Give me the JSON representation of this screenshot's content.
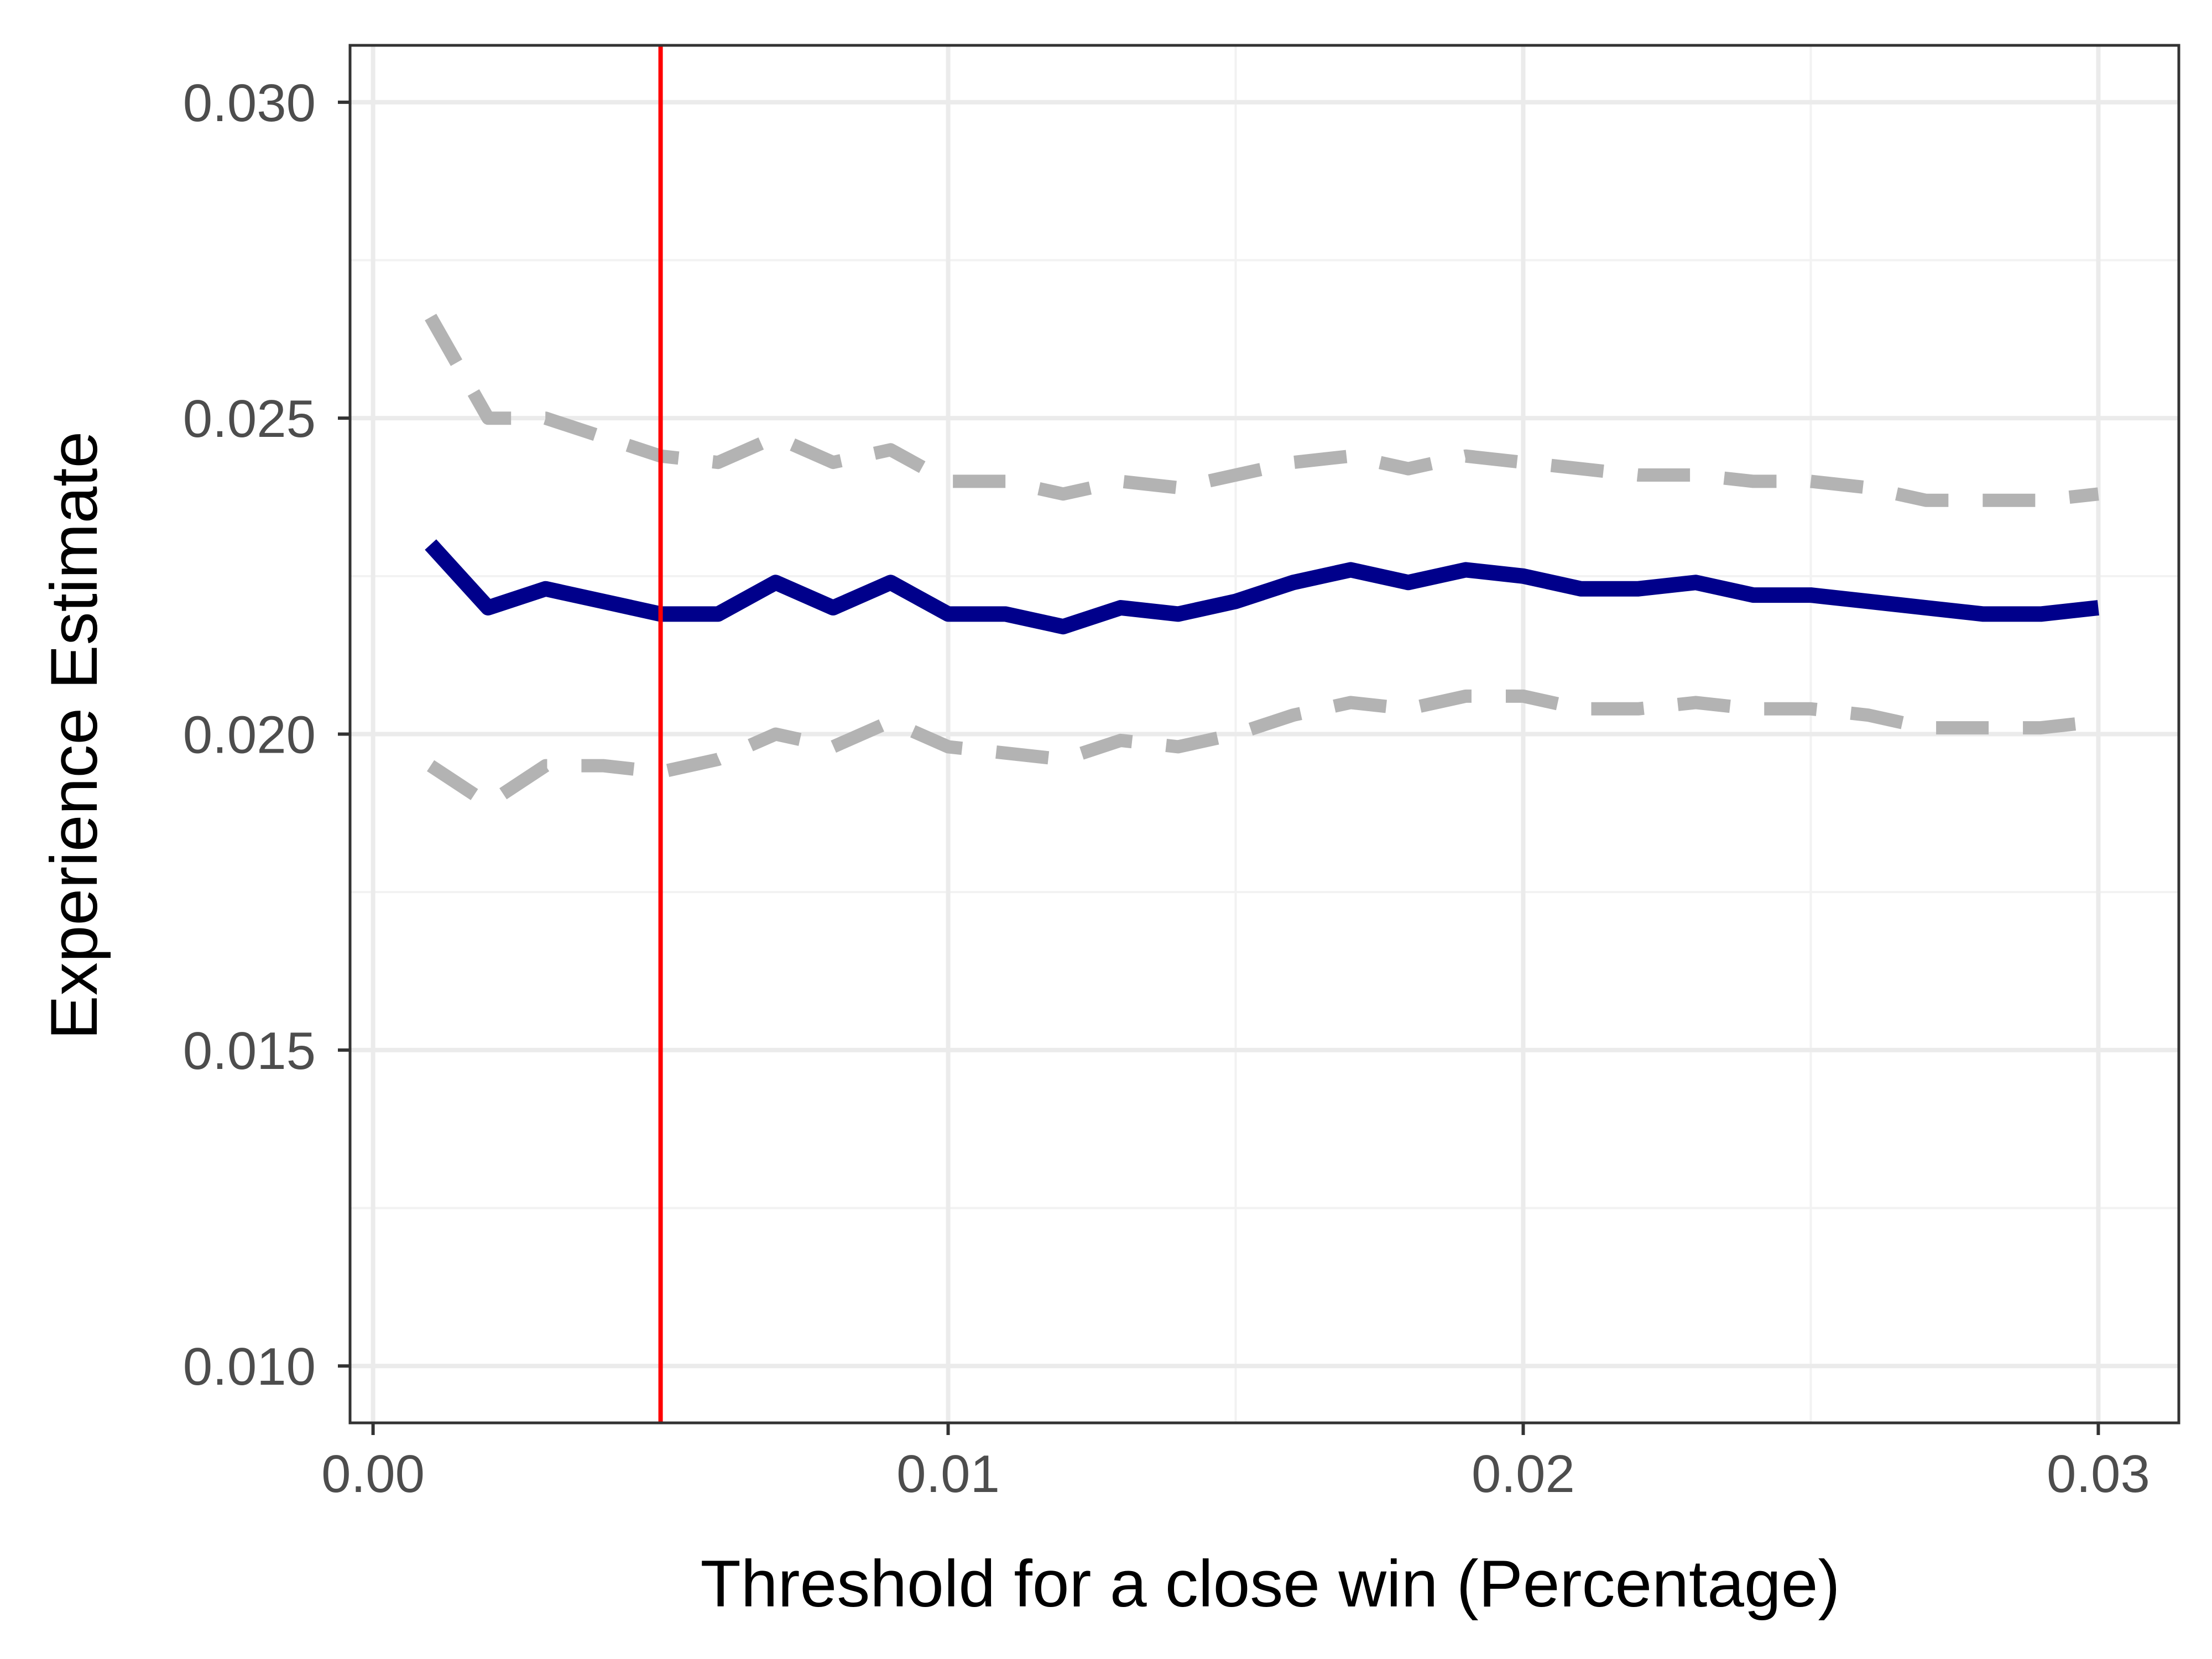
{
  "chart_data": {
    "type": "line",
    "title": "",
    "xlabel": "Threshold for a close win (Percentage)",
    "ylabel": "Experience Estimate",
    "xlim": [
      -0.0004,
      0.0314
    ],
    "ylim": [
      0.0091,
      0.0309
    ],
    "x_ticks": [
      0.0,
      0.01,
      0.02,
      0.03
    ],
    "x_tick_labels": [
      "0.00",
      "0.01",
      "0.02",
      "0.03"
    ],
    "x_minor_ticks": [
      0.005,
      0.015,
      0.025
    ],
    "y_ticks": [
      0.01,
      0.015,
      0.02,
      0.025,
      0.03
    ],
    "y_tick_labels": [
      "0.010",
      "0.015",
      "0.020",
      "0.025",
      "0.030"
    ],
    "y_minor_ticks": [
      0.0125,
      0.0175,
      0.0225,
      0.0275
    ],
    "grid": true,
    "legend": "none",
    "x": [
      0.001,
      0.002,
      0.003,
      0.004,
      0.005,
      0.006,
      0.007,
      0.008,
      0.009,
      0.01,
      0.011,
      0.012,
      0.013,
      0.014,
      0.015,
      0.016,
      0.017,
      0.018,
      0.019,
      0.02,
      0.021,
      0.022,
      0.023,
      0.024,
      0.025,
      0.026,
      0.027,
      0.028,
      0.029,
      0.03
    ],
    "series": [
      {
        "key": "estimate",
        "style": "solid",
        "color": "#00008b",
        "values": [
          0.023,
          0.022,
          0.0223,
          0.0221,
          0.0219,
          0.0219,
          0.0224,
          0.022,
          0.0224,
          0.0219,
          0.0219,
          0.0217,
          0.022,
          0.0219,
          0.0221,
          0.0224,
          0.0226,
          0.0224,
          0.0226,
          0.0225,
          0.0223,
          0.0223,
          0.0224,
          0.0222,
          0.0222,
          0.0221,
          0.022,
          0.0219,
          0.0219,
          0.022
        ]
      },
      {
        "key": "upper_bound",
        "style": "dashed",
        "color": "#b3b3b3",
        "values": [
          0.0266,
          0.025,
          0.025,
          0.0247,
          0.0244,
          0.0243,
          0.0247,
          0.0243,
          0.0245,
          0.024,
          0.024,
          0.0238,
          0.024,
          0.0239,
          0.0241,
          0.0243,
          0.0244,
          0.0242,
          0.0244,
          0.0243,
          0.0242,
          0.0241,
          0.0241,
          0.024,
          0.024,
          0.0239,
          0.0237,
          0.0237,
          0.0237,
          0.0238
        ]
      },
      {
        "key": "lower_bound",
        "style": "dashed",
        "color": "#b3b3b3",
        "values": [
          0.0195,
          0.0189,
          0.0195,
          0.0195,
          0.0194,
          0.0196,
          0.02,
          0.0198,
          0.0202,
          0.0198,
          0.0197,
          0.0196,
          0.0199,
          0.0198,
          0.02,
          0.0203,
          0.0205,
          0.0204,
          0.0206,
          0.0206,
          0.0204,
          0.0204,
          0.0205,
          0.0204,
          0.0204,
          0.0203,
          0.0201,
          0.0201,
          0.0201,
          0.0202
        ]
      }
    ],
    "reference_line": {
      "orientation": "vertical",
      "x": 0.005,
      "color": "#ff0000"
    }
  },
  "colors": {
    "panel_border": "#333333",
    "grid_major": "#ebebeb",
    "grid_minor": "#f2f2f2",
    "axis_ticks": "#333333",
    "tick_label": "#4d4d4d"
  }
}
